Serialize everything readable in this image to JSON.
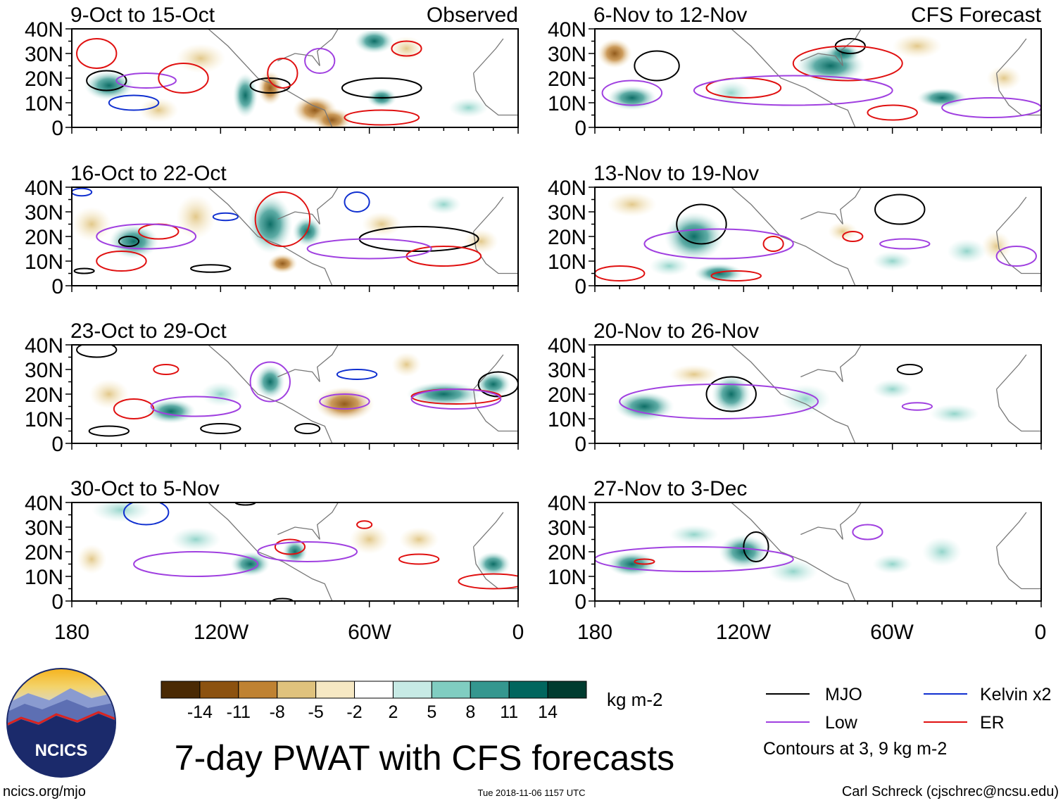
{
  "chart_data": {
    "type": "heatmap",
    "title": "7-day PWAT with CFS forecasts",
    "variable": "PWAT anomaly",
    "units": "kg m-2",
    "domain": {
      "lon_range": [
        -180,
        0
      ],
      "lat_range": [
        0,
        40
      ]
    },
    "lat_ticks": [
      "40N",
      "30N",
      "20N",
      "10N",
      "0"
    ],
    "lon_ticks": [
      "180",
      "120W",
      "60W",
      "0"
    ],
    "columns": [
      {
        "tag": "Observed",
        "periods": [
          "9-Oct to 15-Oct",
          "16-Oct to 22-Oct",
          "23-Oct to 29-Oct",
          "30-Oct to 5-Nov"
        ]
      },
      {
        "tag": "CFS Forecast",
        "periods": [
          "6-Nov to 12-Nov",
          "13-Nov to 19-Nov",
          "20-Nov to 26-Nov",
          "27-Nov to 3-Dec"
        ]
      }
    ],
    "colorbar": {
      "ticks": [
        "-14",
        "-11",
        "-8",
        "-5",
        "-2",
        "2",
        "5",
        "8",
        "11",
        "14"
      ],
      "colors": [
        "#4a2a04",
        "#8c5210",
        "#bf8232",
        "#dfc27d",
        "#f6e8c3",
        "#ffffff",
        "#c7eae5",
        "#80cdc1",
        "#35978f",
        "#01665e",
        "#003c30"
      ]
    },
    "legend": {
      "items": [
        {
          "label": "MJO",
          "color": "#000000"
        },
        {
          "label": "Kelvin x2",
          "color": "#1030d0"
        },
        {
          "label": "Low",
          "color": "#a040e0"
        },
        {
          "label": "ER",
          "color": "#e01010"
        }
      ],
      "note": "Contours at 3, 9 kg m-2"
    }
  },
  "logo_text": "NCICS",
  "footer": {
    "url": "ncics.org/mjo",
    "timestamp": "Tue 2018-11-06 1157 UTC",
    "credit": "Carl Schreck (cjschrec@ncsu.edu)"
  }
}
